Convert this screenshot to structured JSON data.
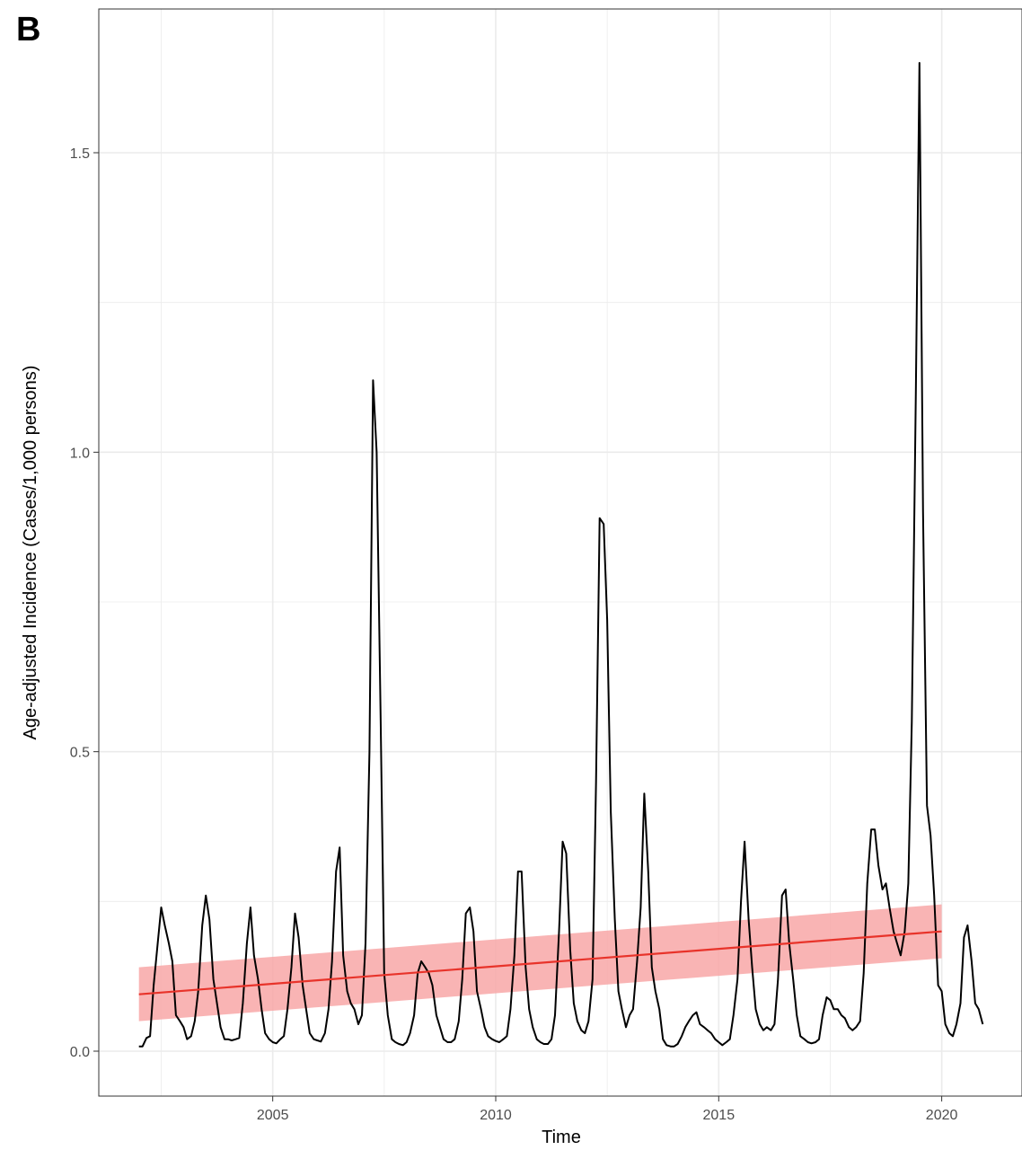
{
  "panel_label": "B",
  "colors": {
    "series_line": "#000000",
    "trend_line": "#e8332a",
    "trend_band": "#f8a7a7",
    "grid": "#ebebeb",
    "panel_border": "#333333",
    "tick_text": "#4d4d4d"
  },
  "chart_data": {
    "type": "line",
    "xlabel": "Time",
    "ylabel": "Age-adjusted Incidence (Cases/1,000 persons)",
    "xlim": [
      2001.1,
      2021.8
    ],
    "ylim": [
      -0.075,
      1.74
    ],
    "x_ticks": [
      2005,
      2010,
      2015,
      2020
    ],
    "x_tick_labels": [
      "2005",
      "2010",
      "2015",
      "2020"
    ],
    "y_ticks": [
      0.0,
      0.5,
      1.0,
      1.5
    ],
    "y_tick_labels": [
      "0.0",
      "0.5",
      "1.0",
      "1.5"
    ],
    "grid": true,
    "series": [
      {
        "x": [
          2002.0,
          2002.08,
          2002.17,
          2002.25,
          2002.33,
          2002.42,
          2002.5,
          2002.58,
          2002.67,
          2002.75,
          2002.83,
          2002.92,
          2003.0,
          2003.08,
          2003.17,
          2003.25,
          2003.33,
          2003.42,
          2003.5,
          2003.58,
          2003.67,
          2003.75,
          2003.83,
          2003.92,
          2004.0,
          2004.08,
          2004.17,
          2004.25,
          2004.33,
          2004.42,
          2004.5,
          2004.58,
          2004.67,
          2004.75,
          2004.83,
          2004.92,
          2005.0,
          2005.08,
          2005.17,
          2005.25,
          2005.33,
          2005.42,
          2005.5,
          2005.58,
          2005.67,
          2005.75,
          2005.83,
          2005.92,
          2006.0,
          2006.08,
          2006.17,
          2006.25,
          2006.33,
          2006.42,
          2006.5,
          2006.58,
          2006.67,
          2006.75,
          2006.83,
          2006.92,
          2007.0,
          2007.08,
          2007.17,
          2007.25,
          2007.33,
          2007.42,
          2007.5,
          2007.58,
          2007.67,
          2007.75,
          2007.83,
          2007.92,
          2008.0,
          2008.08,
          2008.17,
          2008.25,
          2008.33,
          2008.42,
          2008.5,
          2008.58,
          2008.67,
          2008.75,
          2008.83,
          2008.92,
          2009.0,
          2009.08,
          2009.17,
          2009.25,
          2009.33,
          2009.42,
          2009.5,
          2009.58,
          2009.67,
          2009.75,
          2009.83,
          2009.92,
          2010.0,
          2010.08,
          2010.17,
          2010.25,
          2010.33,
          2010.42,
          2010.5,
          2010.58,
          2010.67,
          2010.75,
          2010.83,
          2010.92,
          2011.0,
          2011.08,
          2011.17,
          2011.25,
          2011.33,
          2011.42,
          2011.5,
          2011.58,
          2011.67,
          2011.75,
          2011.83,
          2011.92,
          2012.0,
          2012.08,
          2012.17,
          2012.25,
          2012.33,
          2012.42,
          2012.5,
          2012.58,
          2012.67,
          2012.75,
          2012.83,
          2012.92,
          2013.0,
          2013.08,
          2013.17,
          2013.25,
          2013.33,
          2013.42,
          2013.5,
          2013.58,
          2013.67,
          2013.75,
          2013.83,
          2013.92,
          2014.0,
          2014.08,
          2014.17,
          2014.25,
          2014.33,
          2014.42,
          2014.5,
          2014.58,
          2014.67,
          2014.75,
          2014.83,
          2014.92,
          2015.0,
          2015.08,
          2015.17,
          2015.25,
          2015.33,
          2015.42,
          2015.5,
          2015.58,
          2015.67,
          2015.75,
          2015.83,
          2015.92,
          2016.0,
          2016.08,
          2016.17,
          2016.25,
          2016.33,
          2016.42,
          2016.5,
          2016.58,
          2016.67,
          2016.75,
          2016.83,
          2016.92,
          2017.0,
          2017.08,
          2017.17,
          2017.25,
          2017.33,
          2017.42,
          2017.5,
          2017.58,
          2017.67,
          2017.75,
          2017.83,
          2017.92,
          2018.0,
          2018.08,
          2018.17,
          2018.25,
          2018.33,
          2018.42,
          2018.5,
          2018.58,
          2018.67,
          2018.75,
          2018.83,
          2018.92,
          2019.0,
          2019.08,
          2019.17,
          2019.25,
          2019.33,
          2019.42,
          2019.5,
          2019.58,
          2019.67,
          2019.75,
          2019.83,
          2019.92,
          2020.0,
          2020.08,
          2020.17,
          2020.25,
          2020.33,
          2020.42,
          2020.5,
          2020.58,
          2020.67,
          2020.75,
          2020.83,
          2020.92
        ],
        "y": [
          0.008,
          0.008,
          0.022,
          0.025,
          0.11,
          0.18,
          0.24,
          0.21,
          0.18,
          0.15,
          0.06,
          0.05,
          0.04,
          0.02,
          0.025,
          0.05,
          0.1,
          0.21,
          0.26,
          0.22,
          0.12,
          0.08,
          0.04,
          0.02,
          0.02,
          0.018,
          0.02,
          0.022,
          0.08,
          0.18,
          0.24,
          0.16,
          0.12,
          0.07,
          0.03,
          0.02,
          0.015,
          0.013,
          0.02,
          0.025,
          0.07,
          0.14,
          0.23,
          0.19,
          0.11,
          0.07,
          0.03,
          0.02,
          0.018,
          0.016,
          0.03,
          0.07,
          0.15,
          0.3,
          0.34,
          0.16,
          0.1,
          0.08,
          0.07,
          0.045,
          0.06,
          0.18,
          0.5,
          1.12,
          1.0,
          0.55,
          0.13,
          0.06,
          0.02,
          0.015,
          0.012,
          0.01,
          0.015,
          0.03,
          0.06,
          0.13,
          0.15,
          0.14,
          0.13,
          0.11,
          0.06,
          0.04,
          0.02,
          0.015,
          0.015,
          0.02,
          0.05,
          0.12,
          0.23,
          0.24,
          0.2,
          0.1,
          0.07,
          0.04,
          0.025,
          0.02,
          0.017,
          0.015,
          0.02,
          0.025,
          0.07,
          0.16,
          0.3,
          0.3,
          0.14,
          0.07,
          0.04,
          0.02,
          0.015,
          0.012,
          0.012,
          0.02,
          0.06,
          0.2,
          0.35,
          0.33,
          0.17,
          0.08,
          0.05,
          0.035,
          0.03,
          0.05,
          0.12,
          0.45,
          0.89,
          0.88,
          0.72,
          0.4,
          0.22,
          0.1,
          0.07,
          0.04,
          0.06,
          0.07,
          0.15,
          0.24,
          0.43,
          0.3,
          0.14,
          0.1,
          0.07,
          0.02,
          0.01,
          0.008,
          0.008,
          0.012,
          0.025,
          0.04,
          0.05,
          0.06,
          0.065,
          0.045,
          0.04,
          0.035,
          0.03,
          0.02,
          0.015,
          0.01,
          0.015,
          0.02,
          0.06,
          0.12,
          0.25,
          0.35,
          0.22,
          0.14,
          0.07,
          0.045,
          0.035,
          0.04,
          0.035,
          0.045,
          0.12,
          0.26,
          0.27,
          0.18,
          0.12,
          0.06,
          0.025,
          0.02,
          0.015,
          0.013,
          0.015,
          0.02,
          0.06,
          0.09,
          0.085,
          0.07,
          0.07,
          0.06,
          0.055,
          0.04,
          0.035,
          0.04,
          0.05,
          0.13,
          0.28,
          0.37,
          0.37,
          0.31,
          0.27,
          0.28,
          0.24,
          0.2,
          0.18,
          0.16,
          0.2,
          0.28,
          0.55,
          1.1,
          1.65,
          0.9,
          0.41,
          0.36,
          0.26,
          0.11,
          0.1,
          0.045,
          0.03,
          0.025,
          0.045,
          0.08,
          0.19,
          0.21,
          0.15,
          0.08,
          0.07,
          0.045
        ]
      }
    ],
    "trend": {
      "x": [
        2002.0,
        2020.0
      ],
      "y": [
        0.095,
        0.2
      ],
      "ci_lower": [
        0.05,
        0.155
      ],
      "ci_upper": [
        0.14,
        0.245
      ]
    }
  }
}
